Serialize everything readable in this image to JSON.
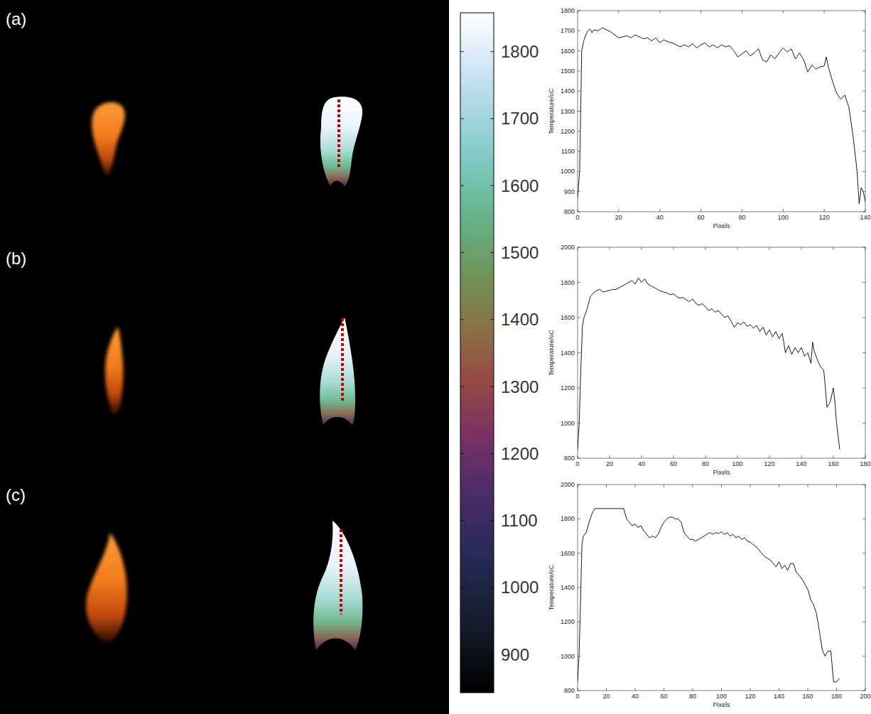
{
  "panel_labels": [
    "(a)",
    "(b)",
    "(c)"
  ],
  "colorbar": {
    "range": [
      843,
      1858
    ],
    "ticks": [
      900,
      1000,
      1100,
      1200,
      1300,
      1400,
      1500,
      1600,
      1700,
      1800
    ]
  },
  "chart_data": [
    {
      "type": "line",
      "x_label": "Pixels",
      "y_label": "Temperature/oC",
      "color": "#000000",
      "xlim": [
        0,
        140
      ],
      "ylim": [
        800,
        1800
      ],
      "xticks": [
        0,
        20,
        40,
        60,
        80,
        100,
        120,
        140
      ],
      "yticks": [
        800,
        900,
        1000,
        1100,
        1200,
        1300,
        1400,
        1500,
        1600,
        1700,
        1800
      ],
      "x": [
        0,
        1,
        2,
        3,
        4,
        5,
        6,
        7,
        8,
        10,
        12,
        14,
        16,
        18,
        20,
        22,
        24,
        26,
        28,
        30,
        32,
        34,
        36,
        38,
        40,
        42,
        44,
        46,
        48,
        50,
        52,
        54,
        56,
        58,
        60,
        62,
        64,
        66,
        68,
        70,
        72,
        74,
        76,
        78,
        80,
        82,
        84,
        86,
        88,
        90,
        92,
        94,
        96,
        98,
        100,
        102,
        104,
        106,
        108,
        110,
        112,
        114,
        116,
        118,
        120,
        121,
        122,
        124,
        126,
        128,
        130,
        132,
        134,
        136,
        137,
        138,
        139,
        140
      ],
      "values": [
        870,
        1000,
        1600,
        1650,
        1680,
        1700,
        1710,
        1690,
        1705,
        1700,
        1715,
        1705,
        1695,
        1680,
        1665,
        1670,
        1675,
        1665,
        1680,
        1670,
        1660,
        1665,
        1650,
        1665,
        1640,
        1655,
        1645,
        1640,
        1630,
        1620,
        1630,
        1620,
        1635,
        1615,
        1630,
        1640,
        1620,
        1630,
        1615,
        1630,
        1620,
        1625,
        1600,
        1570,
        1585,
        1600,
        1575,
        1590,
        1610,
        1555,
        1545,
        1580,
        1560,
        1590,
        1615,
        1595,
        1610,
        1560,
        1590,
        1555,
        1495,
        1530,
        1510,
        1520,
        1525,
        1570,
        1520,
        1450,
        1390,
        1360,
        1380,
        1320,
        1180,
        1000,
        840,
        920,
        900,
        850
      ]
    },
    {
      "type": "line",
      "x_label": "Pixels",
      "y_label": "Temperature/oC",
      "color": "#000000",
      "xlim": [
        0,
        180
      ],
      "ylim": [
        800,
        2000
      ],
      "xticks": [
        0,
        20,
        40,
        60,
        80,
        100,
        120,
        140,
        160,
        180
      ],
      "yticks": [
        800,
        1000,
        1200,
        1400,
        1600,
        1800,
        2000
      ],
      "x": [
        0,
        1,
        2,
        3,
        4,
        6,
        8,
        10,
        12,
        14,
        16,
        18,
        20,
        22,
        24,
        26,
        28,
        30,
        32,
        34,
        36,
        38,
        40,
        42,
        44,
        46,
        48,
        50,
        52,
        54,
        56,
        58,
        60,
        62,
        64,
        66,
        68,
        70,
        72,
        74,
        76,
        78,
        80,
        82,
        84,
        86,
        88,
        90,
        92,
        94,
        96,
        98,
        100,
        102,
        104,
        106,
        108,
        110,
        112,
        114,
        116,
        118,
        120,
        122,
        124,
        126,
        128,
        129,
        130,
        132,
        134,
        136,
        138,
        140,
        142,
        144,
        146,
        147,
        148,
        150,
        152,
        154,
        155,
        156,
        158,
        160,
        161,
        162,
        164
      ],
      "values": [
        850,
        1000,
        1300,
        1550,
        1600,
        1650,
        1720,
        1740,
        1755,
        1760,
        1745,
        1750,
        1755,
        1760,
        1760,
        1770,
        1780,
        1790,
        1800,
        1810,
        1790,
        1825,
        1800,
        1820,
        1790,
        1780,
        1770,
        1760,
        1750,
        1745,
        1740,
        1730,
        1735,
        1720,
        1710,
        1715,
        1700,
        1690,
        1705,
        1680,
        1670,
        1680,
        1660,
        1640,
        1650,
        1630,
        1640,
        1620,
        1600,
        1610,
        1580,
        1545,
        1570,
        1560,
        1575,
        1550,
        1560,
        1540,
        1555,
        1520,
        1545,
        1500,
        1530,
        1490,
        1520,
        1480,
        1510,
        1460,
        1400,
        1440,
        1390,
        1430,
        1400,
        1430,
        1380,
        1400,
        1340,
        1460,
        1410,
        1360,
        1320,
        1300,
        1200,
        1090,
        1120,
        1200,
        1120,
        1000,
        850
      ]
    },
    {
      "type": "line",
      "x_label": "Pixels",
      "y_label": "Temperature/oC",
      "color": "#000000",
      "xlim": [
        0,
        200
      ],
      "ylim": [
        800,
        2000
      ],
      "xticks": [
        0,
        20,
        40,
        60,
        80,
        100,
        120,
        140,
        160,
        180,
        200
      ],
      "yticks": [
        800,
        1000,
        1200,
        1400,
        1600,
        1800,
        2000
      ],
      "x": [
        0,
        1,
        2,
        3,
        4,
        6,
        8,
        10,
        12,
        14,
        16,
        18,
        20,
        22,
        24,
        26,
        28,
        30,
        32,
        34,
        36,
        38,
        40,
        42,
        44,
        46,
        48,
        50,
        52,
        54,
        56,
        58,
        60,
        62,
        64,
        66,
        68,
        70,
        72,
        74,
        76,
        78,
        80,
        82,
        84,
        86,
        88,
        90,
        92,
        94,
        96,
        98,
        100,
        102,
        104,
        106,
        108,
        110,
        112,
        114,
        116,
        118,
        120,
        122,
        124,
        126,
        128,
        130,
        132,
        134,
        136,
        138,
        140,
        142,
        144,
        146,
        148,
        150,
        152,
        154,
        156,
        158,
        160,
        162,
        164,
        166,
        168,
        170,
        172,
        174,
        176,
        178,
        180,
        182
      ],
      "values": [
        850,
        1000,
        1300,
        1650,
        1700,
        1720,
        1780,
        1830,
        1860,
        1860,
        1860,
        1860,
        1860,
        1860,
        1860,
        1860,
        1860,
        1860,
        1860,
        1800,
        1780,
        1760,
        1770,
        1750,
        1760,
        1730,
        1710,
        1690,
        1700,
        1690,
        1710,
        1750,
        1780,
        1800,
        1810,
        1810,
        1800,
        1800,
        1780,
        1720,
        1700,
        1680,
        1680,
        1670,
        1680,
        1690,
        1700,
        1710,
        1720,
        1710,
        1720,
        1715,
        1725,
        1710,
        1720,
        1700,
        1710,
        1690,
        1700,
        1680,
        1690,
        1670,
        1665,
        1650,
        1640,
        1620,
        1600,
        1580,
        1570,
        1560,
        1540,
        1520,
        1550,
        1510,
        1530,
        1500,
        1540,
        1540,
        1490,
        1470,
        1450,
        1420,
        1390,
        1330,
        1300,
        1250,
        1150,
        1040,
        1000,
        1030,
        1030,
        850,
        850,
        870
      ]
    }
  ]
}
